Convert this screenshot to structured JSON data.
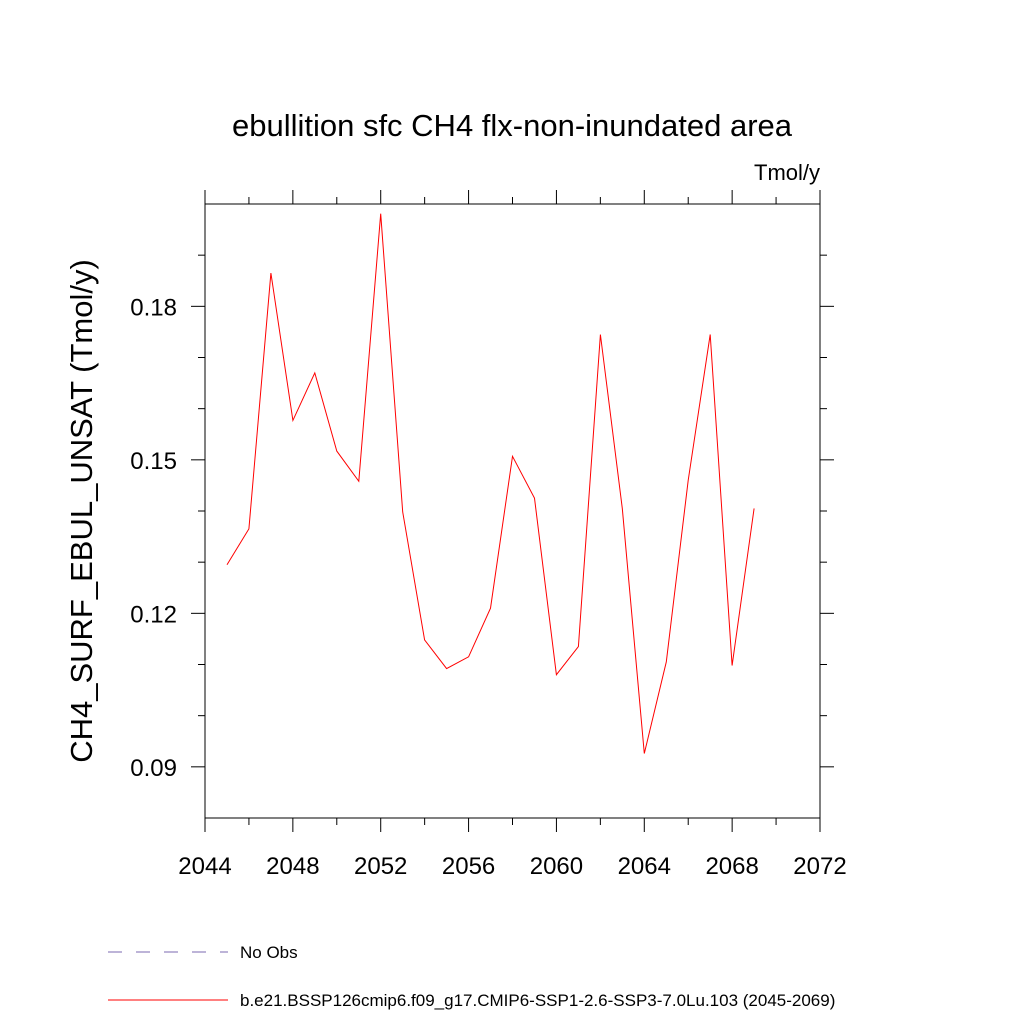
{
  "chart_data": {
    "type": "line",
    "title": "ebullition sfc CH4 flx-non-inundated area",
    "units_label": "Tmol/y",
    "ylabel": "CH4_SURF_EBUL_UNSAT  (Tmol/y)",
    "xlabel": "",
    "xlim": [
      2044,
      2072
    ],
    "ylim": [
      0.08,
      0.2
    ],
    "x_ticks": [
      2044,
      2048,
      2052,
      2056,
      2060,
      2064,
      2068,
      2072
    ],
    "x_tick_labels": [
      "2044",
      "2048",
      "2052",
      "2056",
      "2060",
      "2064",
      "2068",
      "2072"
    ],
    "x_minor_step": 2,
    "y_ticks": [
      0.09,
      0.12,
      0.15,
      0.18
    ],
    "y_tick_labels": [
      "0.09",
      "0.12",
      "0.15",
      "0.18"
    ],
    "y_minor_step": 0.01,
    "grid": false,
    "series": [
      {
        "name": "b.e21.BSSP126cmip6.f09_g17.CMIP6-SSP1-2.6-SSP3-7.0Lu.103 (2045-2069)",
        "color": "#ff0000",
        "x": [
          2045,
          2046,
          2047,
          2048,
          2049,
          2050,
          2051,
          2052,
          2053,
          2054,
          2055,
          2056,
          2057,
          2058,
          2059,
          2060,
          2061,
          2062,
          2063,
          2064,
          2065,
          2066,
          2067,
          2068,
          2069
        ],
        "y": [
          0.1295,
          0.1365,
          0.1865,
          0.1577,
          0.167,
          0.1517,
          0.1458,
          0.1981,
          0.1398,
          0.1148,
          0.1092,
          0.1115,
          0.121,
          0.1507,
          0.1425,
          0.108,
          0.1135,
          0.1745,
          0.1405,
          0.0926,
          0.1105,
          0.146,
          0.1745,
          0.1098,
          0.1405
        ]
      }
    ],
    "legend": [
      {
        "label": "No Obs",
        "color": "#7b68b0",
        "style": "dashed"
      },
      {
        "label": "b.e21.BSSP126cmip6.f09_g17.CMIP6-SSP1-2.6-SSP3-7.0Lu.103 (2045-2069)",
        "color": "#ff0000",
        "style": "solid"
      }
    ],
    "legend_position": "bottom-left"
  }
}
